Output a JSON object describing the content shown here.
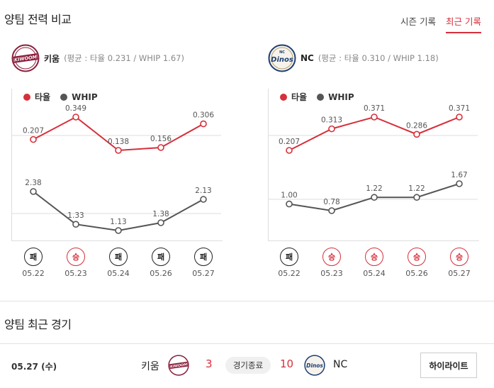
{
  "header": {
    "title": "양팀 전력 비교",
    "tabs": [
      {
        "label": "시즌 기록",
        "active": false
      },
      {
        "label": "최근 기록",
        "active": true
      }
    ]
  },
  "teams": [
    {
      "name": "키움",
      "stat_text": "(평균 : 타율 0.231 / WHIP 1.67)",
      "logo_icon": "kiwoom-logo-icon",
      "logo_text": "KIWOOM",
      "logo_color": "#8a1e3c"
    },
    {
      "name": "NC",
      "stat_text": "(평균 : 타율 0.310 / WHIP 1.18)",
      "logo_icon": "nc-dinos-logo-icon",
      "logo_text": "Dinos",
      "logo_color": "#1e3f73"
    }
  ],
  "legend": {
    "avg_label": "타율",
    "whip_label": "WHIP",
    "avg_color": "#d6303b",
    "whip_color": "#555555"
  },
  "chart_data": [
    {
      "type": "line",
      "team": "키움",
      "categories": [
        "05.22",
        "05.23",
        "05.24",
        "05.26",
        "05.27"
      ],
      "series": [
        {
          "name": "타율",
          "values": [
            0.207,
            0.349,
            0.138,
            0.156,
            0.306
          ],
          "labels": [
            "0.207",
            "0.349",
            "0.138",
            "0.156",
            "0.306"
          ]
        },
        {
          "name": "WHIP",
          "values": [
            2.38,
            1.33,
            1.13,
            1.38,
            2.13
          ],
          "labels": [
            "2.38",
            "1.33",
            "1.13",
            "1.38",
            "2.13"
          ]
        }
      ],
      "results": [
        "패",
        "승",
        "패",
        "패",
        "패"
      ]
    },
    {
      "type": "line",
      "team": "NC",
      "categories": [
        "05.22",
        "05.23",
        "05.24",
        "05.26",
        "05.27"
      ],
      "series": [
        {
          "name": "타율",
          "values": [
            0.207,
            0.313,
            0.371,
            0.286,
            0.371
          ],
          "labels": [
            "0.207",
            "0.313",
            "0.371",
            "0.286",
            "0.371"
          ]
        },
        {
          "name": "WHIP",
          "values": [
            1.0,
            0.78,
            1.22,
            1.22,
            1.67
          ],
          "labels": [
            "1.00",
            "0.78",
            "1.22",
            "1.22",
            "1.67"
          ]
        }
      ],
      "results": [
        "패",
        "승",
        "승",
        "승",
        "승"
      ]
    }
  ],
  "recent": {
    "title": "양팀 최근 경기",
    "date": "05.27 (수)",
    "home_team": "키움",
    "home_score": "3",
    "status": "경기종료",
    "away_score": "10",
    "away_team": "NC",
    "highlight_label": "하이라이트"
  }
}
